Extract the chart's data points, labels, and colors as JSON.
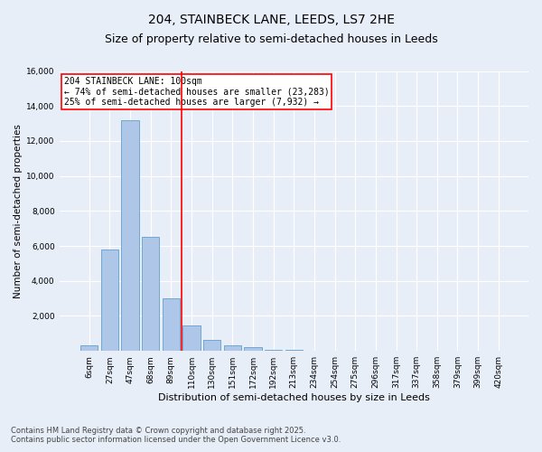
{
  "title": "204, STAINBECK LANE, LEEDS, LS7 2HE",
  "subtitle": "Size of property relative to semi-detached houses in Leeds",
  "xlabel": "Distribution of semi-detached houses by size in Leeds",
  "ylabel": "Number of semi-detached properties",
  "bar_labels": [
    "6sqm",
    "27sqm",
    "47sqm",
    "68sqm",
    "89sqm",
    "110sqm",
    "130sqm",
    "151sqm",
    "172sqm",
    "192sqm",
    "213sqm",
    "234sqm",
    "254sqm",
    "275sqm",
    "296sqm",
    "317sqm",
    "337sqm",
    "358sqm",
    "379sqm",
    "399sqm",
    "420sqm"
  ],
  "bar_values": [
    300,
    5800,
    13200,
    6500,
    3000,
    1450,
    620,
    300,
    230,
    80,
    50,
    20,
    10,
    5,
    3,
    2,
    1,
    1,
    0,
    0,
    0
  ],
  "bar_color": "#aec6e8",
  "bar_edge_color": "#6fa8d0",
  "vline_color": "red",
  "vline_x_index": 4,
  "annotation_title": "204 STAINBECK LANE: 100sqm",
  "annotation_line1": "← 74% of semi-detached houses are smaller (23,283)",
  "annotation_line2": "25% of semi-detached houses are larger (7,932) →",
  "ylim": [
    0,
    16000
  ],
  "yticks": [
    0,
    2000,
    4000,
    6000,
    8000,
    10000,
    12000,
    14000,
    16000
  ],
  "footnote1": "Contains HM Land Registry data © Crown copyright and database right 2025.",
  "footnote2": "Contains public sector information licensed under the Open Government Licence v3.0.",
  "bg_color": "#e8eef8",
  "plot_bg_color": "#e8eef8",
  "title_fontsize": 10,
  "subtitle_fontsize": 9,
  "xlabel_fontsize": 8,
  "ylabel_fontsize": 7.5,
  "tick_fontsize": 6.5,
  "annotation_fontsize": 7,
  "footnote_fontsize": 6,
  "annotation_box_color": "white",
  "annotation_box_edge": "red"
}
